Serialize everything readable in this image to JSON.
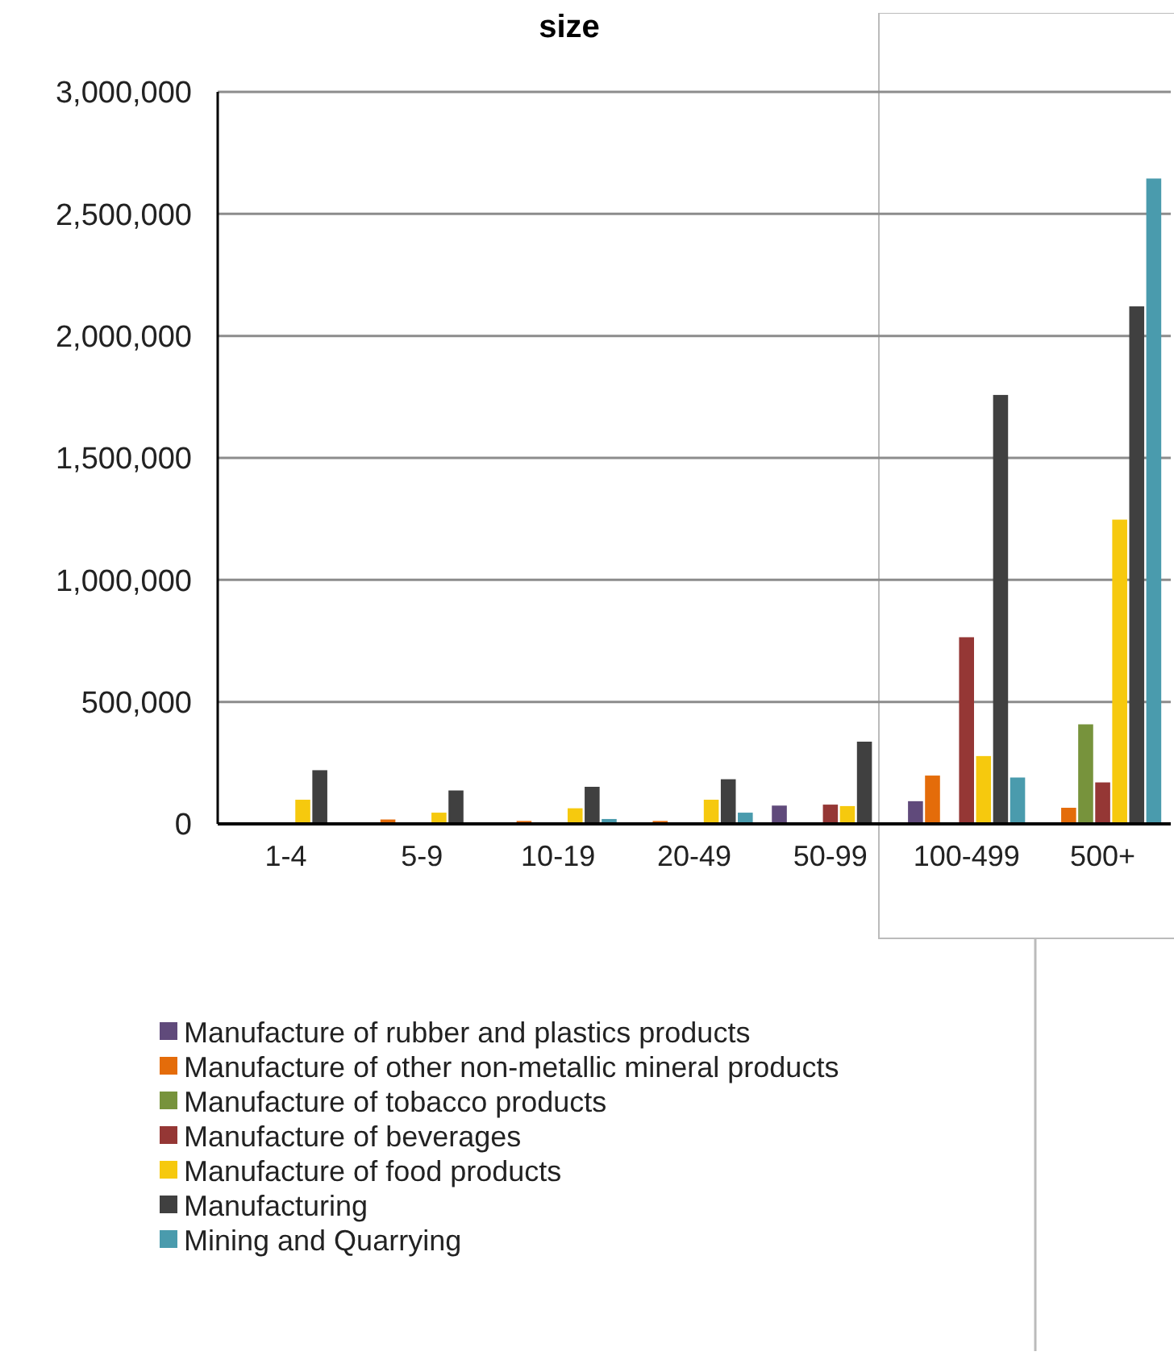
{
  "chart_data": {
    "type": "bar",
    "title": "size",
    "categories": [
      "1-4",
      "5-9",
      "10-19",
      "20-49",
      "50-99",
      "100-499",
      "500+"
    ],
    "ylim": [
      0,
      3000000
    ],
    "yticks": [
      {
        "value": 0,
        "label": "0"
      },
      {
        "value": 500000,
        "label": "500,000"
      },
      {
        "value": 1000000,
        "label": "1,000,000"
      },
      {
        "value": 1500000,
        "label": "1,500,000"
      },
      {
        "value": 2000000,
        "label": "2,000,000"
      },
      {
        "value": 2500000,
        "label": "2,500,000"
      },
      {
        "value": 3000000,
        "label": "3,000,000"
      }
    ],
    "grid": "y",
    "legend": "bottom",
    "series": [
      {
        "name": "Manufacture of rubber and plastics products",
        "color": "#604a7b",
        "values": [
          0,
          0,
          null,
          null,
          75000,
          93000,
          0
        ]
      },
      {
        "name": "Manufacture of other non-metallic mineral products",
        "color": "#e46c0a",
        "values": [
          null,
          18000,
          12000,
          12000,
          null,
          198000,
          66000
        ]
      },
      {
        "name": "Manufacture of tobacco products",
        "color": "#77933c",
        "values": [
          0,
          0,
          0,
          0,
          0,
          0,
          408000
        ]
      },
      {
        "name": "Manufacture of beverages",
        "color": "#953735",
        "values": [
          0,
          0,
          0,
          3000,
          79000,
          765000,
          170000
        ]
      },
      {
        "name": "Manufacture of food products",
        "color": "#f6c90e",
        "values": [
          99000,
          46000,
          64000,
          99000,
          73000,
          278000,
          1247000
        ]
      },
      {
        "name": "Manufacturing",
        "color": "#404040",
        "values": [
          220000,
          137000,
          152000,
          183000,
          337000,
          1758000,
          2121000
        ]
      },
      {
        "name": "Mining and Quarrying",
        "color": "#4a9bad",
        "values": [
          0,
          0,
          20000,
          46000,
          null,
          190000,
          2645000
        ]
      }
    ]
  }
}
